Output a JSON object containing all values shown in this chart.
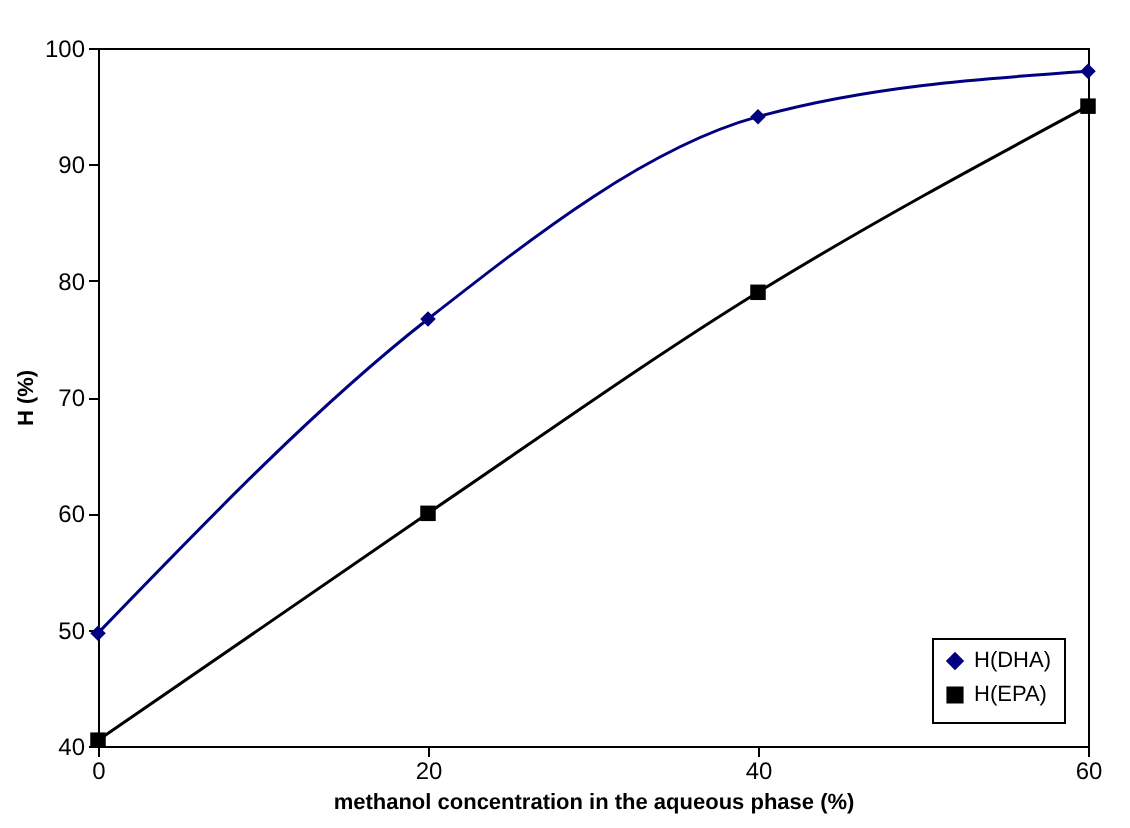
{
  "chart_data": {
    "type": "line",
    "xlabel": "methanol concentration in the aqueous phase (%)",
    "ylabel": "H (%)",
    "x": [
      0,
      20,
      40,
      60
    ],
    "series": [
      {
        "name": "H(DHA)",
        "color": "#000080",
        "marker": "diamond",
        "values": [
          49.7,
          76.7,
          94.1,
          98
        ]
      },
      {
        "name": "H(EPA)",
        "color": "#000000",
        "marker": "square",
        "values": [
          40.5,
          60,
          79,
          95
        ]
      }
    ],
    "xlim": [
      0,
      60
    ],
    "xticks": [
      0,
      20,
      40,
      60
    ],
    "ylim": [
      40,
      100
    ],
    "yticks": [
      40,
      50,
      60,
      70,
      80,
      90,
      100
    ],
    "legend": "bottom right",
    "grid": false,
    "line_style": "solid"
  }
}
